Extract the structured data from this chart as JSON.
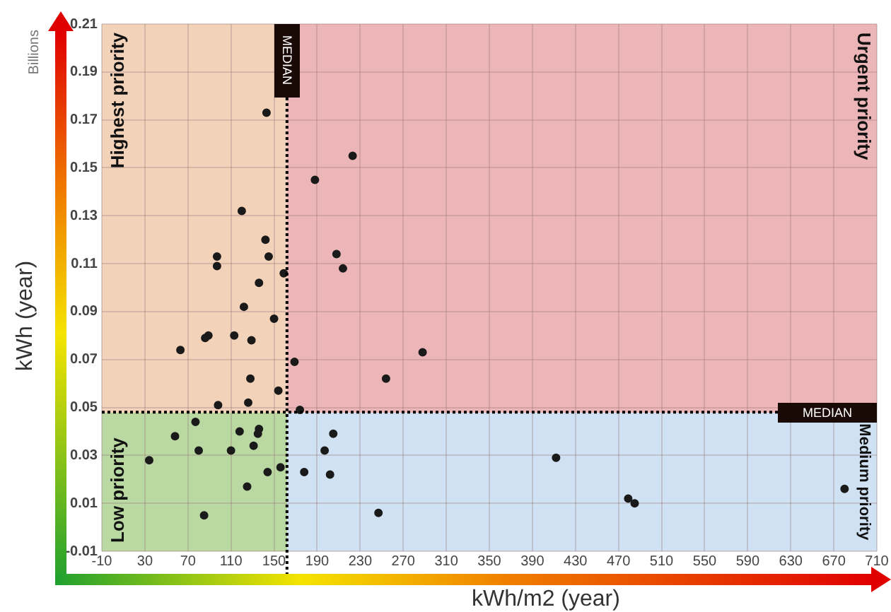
{
  "chart_data": {
    "type": "scatter",
    "xlabel": "kWh/m2 (year)",
    "ylabel": "kWh (year)",
    "annotations": [
      "Highest priority",
      "Urgent priority",
      "Low priority",
      "Medium priority",
      "Billions"
    ],
    "series": [
      {
        "color": "#1a1a1a",
        "x": [
          143,
          223,
          188,
          120,
          142,
          97,
          145,
          208,
          97,
          214,
          159,
          136,
          122,
          150,
          89,
          86,
          113,
          129,
          63,
          288,
          169,
          254,
          128,
          154,
          98,
          126,
          174,
          77,
          58,
          118,
          136,
          135,
          205,
          80,
          131,
          110,
          197,
          34,
          156,
          144,
          178,
          202,
          125,
          247,
          85,
          412,
          479,
          485,
          680
        ],
        "values": [
          0.173,
          0.155,
          0.145,
          0.132,
          0.12,
          0.113,
          0.113,
          0.114,
          0.109,
          0.108,
          0.106,
          0.102,
          0.092,
          0.087,
          0.08,
          0.079,
          0.08,
          0.078,
          0.074,
          0.073,
          0.069,
          0.062,
          0.062,
          0.057,
          0.051,
          0.052,
          0.049,
          0.044,
          0.038,
          0.04,
          0.041,
          0.039,
          0.039,
          0.032,
          0.034,
          0.032,
          0.032,
          0.028,
          0.025,
          0.023,
          0.023,
          0.022,
          0.017,
          0.006,
          0.005,
          0.029,
          0.012,
          0.01,
          0.016
        ]
      }
    ],
    "xlim": [
      -10,
      710
    ],
    "xticks": [
      -10,
      30,
      70,
      110,
      150,
      190,
      230,
      270,
      310,
      350,
      390,
      430,
      470,
      510,
      550,
      590,
      630,
      670,
      710
    ],
    "ylim": [
      -0.01,
      0.21
    ],
    "yticks": [
      -0.01,
      0.01,
      0.03,
      0.05,
      0.07,
      0.09,
      0.11,
      0.13,
      0.15,
      0.17,
      0.19,
      0.21
    ],
    "ref_lines": [
      {
        "axis": "x",
        "value": 162,
        "label": "MEDIAN",
        "color": "#000000",
        "line_style": "dotted"
      },
      {
        "axis": "y",
        "value": 0.048,
        "label": "MEDIAN",
        "color": "#000000",
        "line_style": "dotted"
      }
    ],
    "grid": true,
    "legend": false,
    "marker": "circle"
  }
}
